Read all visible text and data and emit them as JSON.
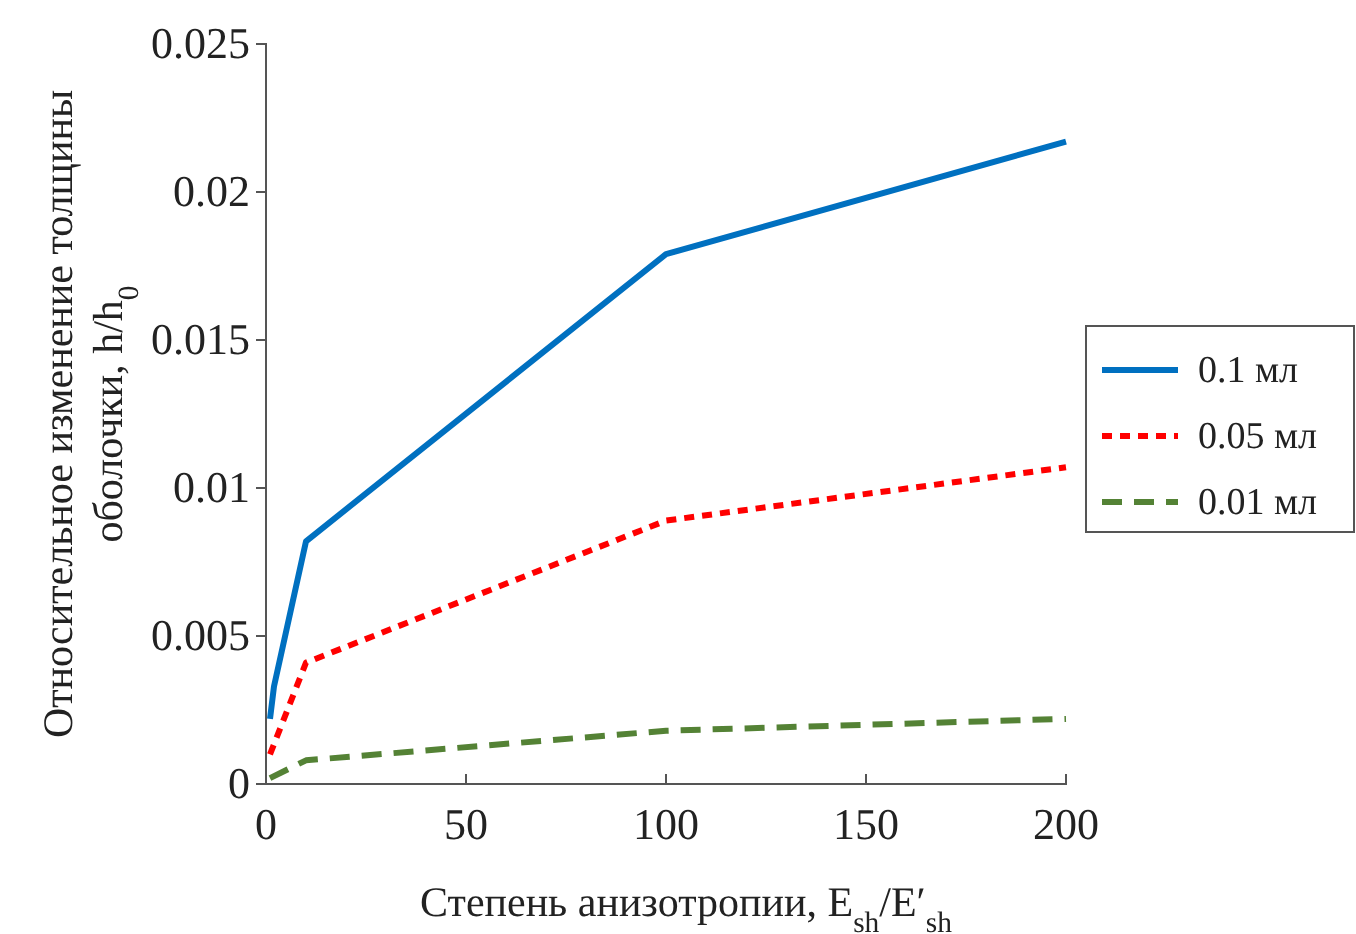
{
  "chart_data": {
    "type": "line",
    "xlabel": "Степень анизотропии, E$_{sh}$/E′$_{sh}$",
    "ylabel": "Относительное изменение толщины\nоболочки, h/h$_{0}$",
    "xlim": [
      0,
      200
    ],
    "xticks": [
      0,
      50,
      100,
      150,
      200
    ],
    "ylim": [
      0,
      0.025
    ],
    "yticks": [
      0,
      0.005,
      0.01,
      0.015,
      0.02,
      0.025
    ],
    "grid": false,
    "legend": "right",
    "series": [
      {
        "name": "0.1 мл",
        "color": "#0070c0",
        "line_style": "solid",
        "x": [
          1,
          2,
          10,
          100,
          200
        ],
        "values": [
          0.0022,
          0.0033,
          0.0082,
          0.0179,
          0.0217
        ]
      },
      {
        "name": "0.05 мл",
        "color": "#ff0000",
        "line_style": "dotted",
        "x": [
          1,
          10,
          100,
          200
        ],
        "values": [
          0.001,
          0.0041,
          0.0089,
          0.0107
        ]
      },
      {
        "name": "0.01 мл",
        "color": "#548235",
        "line_style": "dashed",
        "x": [
          1,
          10,
          100,
          200
        ],
        "values": [
          0.0002,
          0.0008,
          0.0018,
          0.0022
        ]
      }
    ]
  }
}
